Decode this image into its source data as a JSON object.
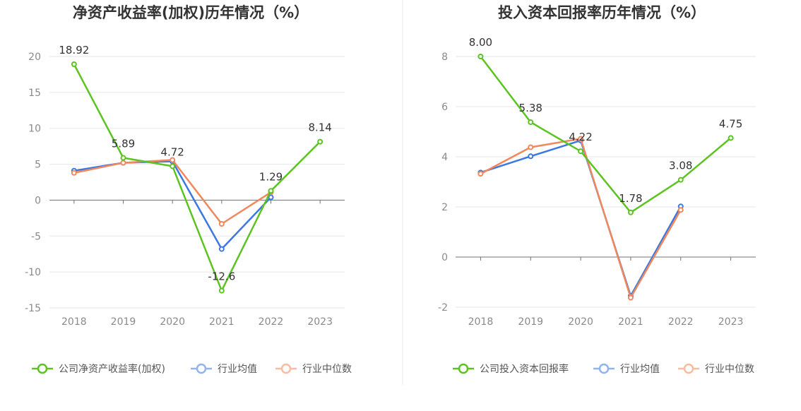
{
  "chart_data": [
    {
      "type": "line",
      "title": "净资产收益率(加权)历年情况（%）",
      "categories": [
        "2018",
        "2019",
        "2020",
        "2021",
        "2022",
        "2023"
      ],
      "ylim": [
        -15,
        20
      ],
      "yticks": [
        20,
        15,
        10,
        5,
        0,
        -5,
        -10,
        -15
      ],
      "series": [
        {
          "name": "公司净资产收益率(加权)",
          "color": "#5cc421",
          "values": [
            18.92,
            5.89,
            4.72,
            -12.6,
            1.29,
            8.14
          ],
          "labels": [
            "18.92",
            "5.89",
            "4.72",
            "-12.6",
            "1.29",
            "8.14"
          ]
        },
        {
          "name": "行业均值",
          "color": "#3b78e0",
          "values": [
            4.1,
            5.2,
            5.4,
            -6.8,
            0.4,
            null
          ]
        },
        {
          "name": "行业中位数",
          "color": "#f0885c",
          "values": [
            3.8,
            5.2,
            5.6,
            -3.3,
            1.1,
            null
          ]
        }
      ]
    },
    {
      "type": "line",
      "title": "投入资本回报率历年情况（%）",
      "categories": [
        "2018",
        "2019",
        "2020",
        "2021",
        "2022",
        "2023"
      ],
      "ylim": [
        -2,
        8
      ],
      "yticks": [
        8,
        6,
        4,
        2,
        0,
        -2
      ],
      "series": [
        {
          "name": "公司投入资本回报率",
          "color": "#5cc421",
          "values": [
            8.0,
            5.38,
            4.22,
            1.78,
            3.08,
            4.75
          ],
          "labels": [
            "8.00",
            "5.38",
            "4.22",
            "1.78",
            "3.08",
            "4.75"
          ]
        },
        {
          "name": "行业均值",
          "color": "#3b78e0",
          "values": [
            3.37,
            4.02,
            4.65,
            -1.55,
            2.02,
            null
          ]
        },
        {
          "name": "行业中位数",
          "color": "#f0885c",
          "values": [
            3.32,
            4.38,
            4.72,
            -1.62,
            1.88,
            null
          ]
        }
      ]
    }
  ]
}
